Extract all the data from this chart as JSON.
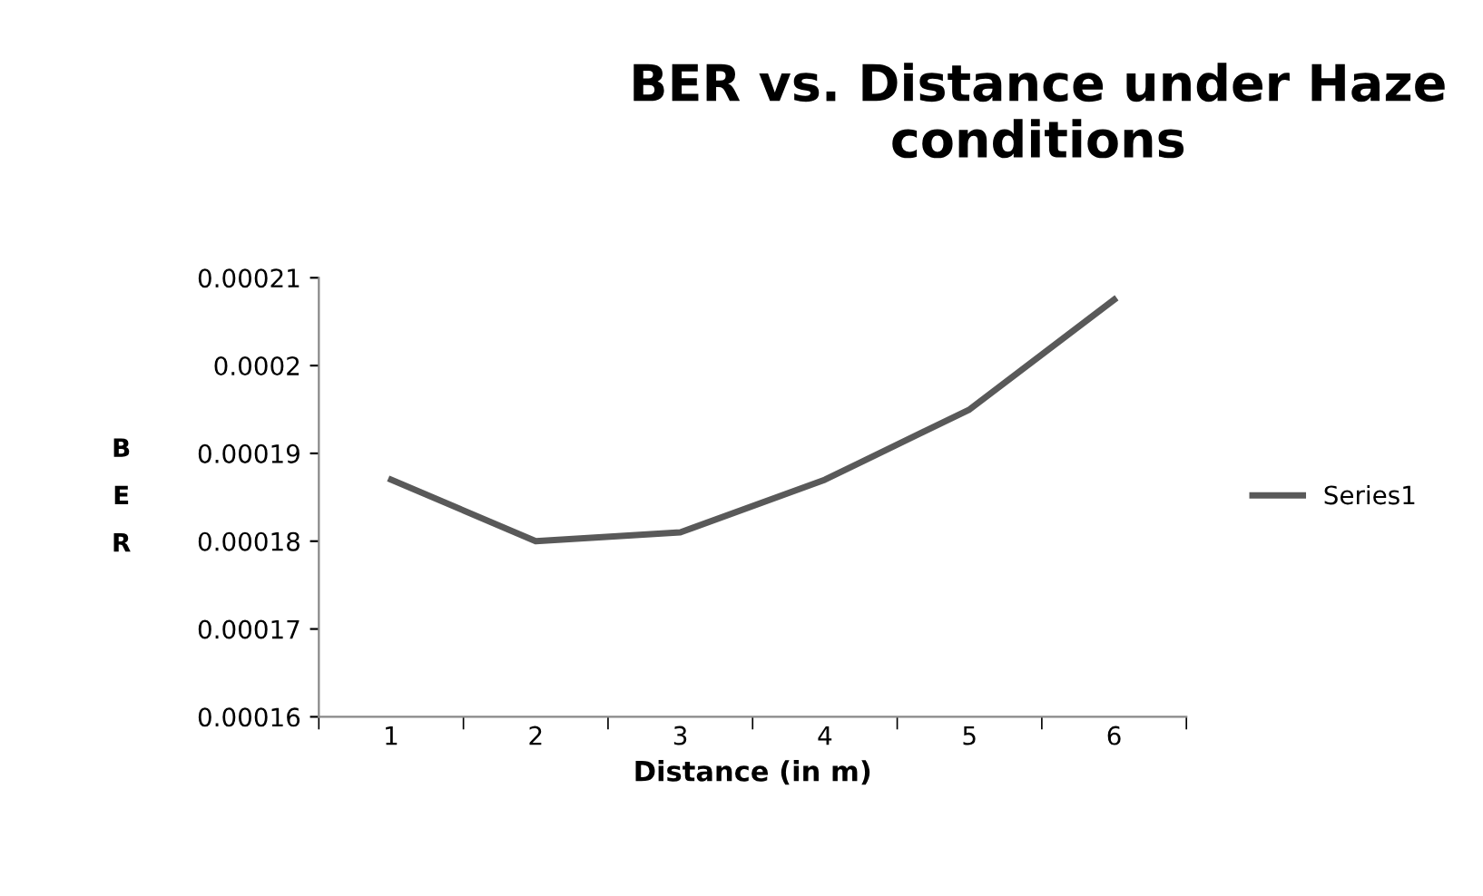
{
  "chart_data": {
    "type": "line",
    "title": "BER vs. Distance under Haze conditions",
    "xlabel": "Distance (in m)",
    "ylabel": "BER",
    "categories": [
      "1",
      "2",
      "3",
      "4",
      "5",
      "6"
    ],
    "series": [
      {
        "name": "Series1",
        "color": "#595959",
        "values": [
          0.000187,
          0.00018,
          0.000181,
          0.000187,
          0.000195,
          0.0002075
        ]
      }
    ],
    "ylim": [
      0.00016,
      0.00021
    ],
    "yticks": [
      0.00016,
      0.00017,
      0.00018,
      0.00019,
      0.0002,
      0.00021
    ],
    "grid": false,
    "legend": "right",
    "marker": "none",
    "line_style": "solid"
  }
}
